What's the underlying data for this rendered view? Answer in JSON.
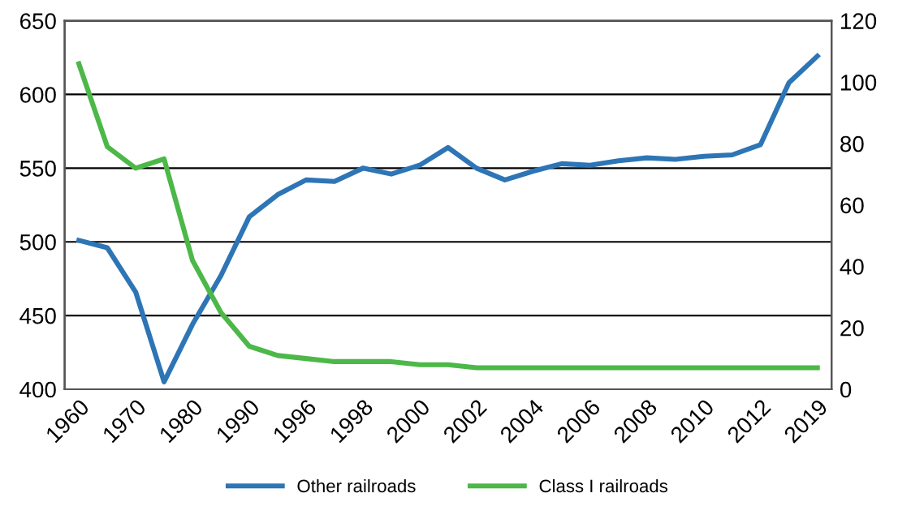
{
  "chart_data": {
    "type": "line",
    "categories": [
      "1960",
      null,
      "1970",
      null,
      "1980",
      null,
      "1990",
      null,
      "1996",
      null,
      "1998",
      null,
      "2000",
      null,
      "2002",
      null,
      "2004",
      null,
      "2006",
      null,
      "2008",
      null,
      "2010",
      null,
      "2012",
      null,
      "2019"
    ],
    "series": [
      {
        "name": "Other railroads",
        "color": "#2e75b6",
        "values": [
          501,
          496,
          466,
          405,
          444,
          477,
          517,
          532,
          542,
          541,
          550,
          546,
          552,
          564,
          550,
          542,
          548,
          553,
          552,
          555,
          557,
          556,
          558,
          559,
          566,
          608,
          626
        ]
      },
      {
        "name": "Class I railroads",
        "color": "#4cb848",
        "axis": "y2",
        "values": [
          106,
          79,
          72,
          75,
          42,
          25,
          14,
          11,
          10,
          9,
          9,
          9,
          8,
          8,
          7,
          7,
          7,
          7,
          7,
          7,
          7,
          7,
          7,
          7,
          7,
          7,
          7
        ]
      }
    ],
    "ylim": [
      400,
      650
    ],
    "yticks": [
      400,
      450,
      500,
      550,
      600,
      650
    ],
    "y2lim": [
      0,
      120
    ],
    "y2ticks": [
      0,
      20,
      40,
      60,
      80,
      100,
      120
    ],
    "grid": "y",
    "legend": "bottom",
    "marker": "none",
    "line_style": "solid"
  }
}
